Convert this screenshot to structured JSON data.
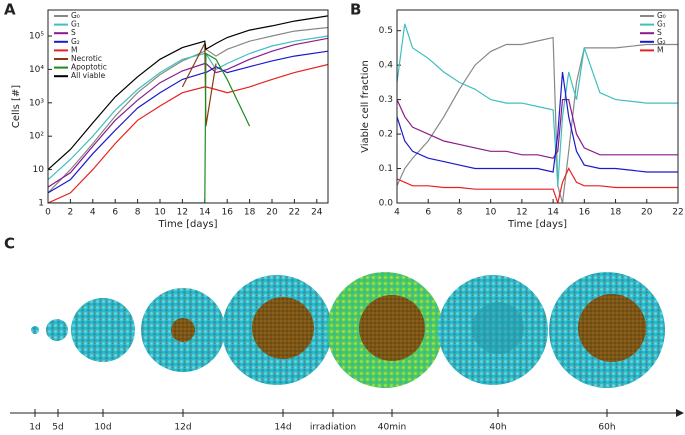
{
  "chart_data": [
    {
      "type": "line",
      "panel_label": "A",
      "xlabel": "Time [days]",
      "ylabel": "Cells [#]",
      "log_y": true,
      "legend": "upper left",
      "x": [
        0,
        2,
        4,
        6,
        8,
        10,
        12,
        14,
        14.1,
        15,
        16,
        18,
        20,
        22,
        25
      ],
      "xlim": [
        0,
        25
      ],
      "xticks": [
        0,
        2,
        4,
        6,
        8,
        10,
        12,
        14,
        16,
        18,
        20,
        22,
        24
      ],
      "ylim": [
        1,
        600000
      ],
      "yticks": [
        1,
        10,
        {
          "value": 100,
          "label": "10²"
        },
        {
          "value": 1000,
          "label": "10³"
        },
        {
          "value": 10000,
          "label": "10⁴"
        },
        {
          "value": 100000,
          "label": "10⁵"
        }
      ],
      "series": [
        {
          "name": "G₀",
          "color": "#888888",
          "values": [
            2,
            10,
            60,
            400,
            2000,
            7000,
            18000,
            35000,
            40000,
            25000,
            40000,
            70000,
            100000,
            140000,
            180000
          ]
        },
        {
          "name": "G₁",
          "color": "#3fbfbf",
          "values": [
            5,
            20,
            100,
            600,
            2500,
            8000,
            20000,
            30000,
            30000,
            10000,
            15000,
            30000,
            50000,
            70000,
            100000
          ]
        },
        {
          "name": "S",
          "color": "#8b1a8b",
          "values": [
            3,
            8,
            50,
            300,
            1200,
            4000,
            9000,
            15000,
            15000,
            8000,
            10000,
            20000,
            35000,
            55000,
            85000
          ]
        },
        {
          "name": "G₂",
          "color": "#1a1acc",
          "values": [
            2,
            5,
            30,
            150,
            700,
            2000,
            5000,
            8000,
            8000,
            12000,
            8000,
            12000,
            18000,
            25000,
            35000
          ]
        },
        {
          "name": "M",
          "color": "#e82020",
          "values": [
            1,
            2,
            10,
            60,
            300,
            800,
            2000,
            3000,
            3000,
            2500,
            2000,
            3000,
            5000,
            8000,
            14000
          ]
        },
        {
          "name": "Necrotic",
          "color": "#8b3a10",
          "values": [
            null,
            null,
            null,
            null,
            null,
            null,
            3000,
            60000,
            200,
            15000,
            null,
            null,
            null,
            null,
            null
          ]
        },
        {
          "name": "Apoptotic",
          "color": "#1a8c1a",
          "values": [
            1,
            1,
            1,
            1,
            1,
            1,
            1,
            1,
            30000,
            20000,
            5000,
            200,
            null,
            null,
            null
          ]
        },
        {
          "name": "All viable",
          "color": "#000000",
          "values": [
            10,
            40,
            250,
            1500,
            6000,
            20000,
            45000,
            70000,
            40000,
            60000,
            90000,
            150000,
            200000,
            280000,
            400000
          ]
        }
      ]
    },
    {
      "type": "line",
      "panel_label": "B",
      "xlabel": "Time [days]",
      "ylabel": "Viable cell fraction",
      "log_y": false,
      "legend": "upper right",
      "x": [
        4,
        4.5,
        5,
        6,
        7,
        8,
        9,
        10,
        11,
        12,
        13,
        14,
        14.3,
        14.6,
        15,
        15.5,
        16,
        17,
        18,
        20,
        22
      ],
      "xlim": [
        4,
        22
      ],
      "xticks": [
        4,
        6,
        8,
        10,
        12,
        14,
        16,
        18,
        20,
        22
      ],
      "ylim": [
        0,
        0.56
      ],
      "yticks": [
        {
          "value": 0,
          "label": "0.0"
        },
        0.1,
        0.2,
        0.3,
        0.4,
        0.5
      ],
      "series": [
        {
          "name": "G₀",
          "color": "#888888",
          "values": [
            0.05,
            0.1,
            0.13,
            0.18,
            0.25,
            0.33,
            0.4,
            0.44,
            0.46,
            0.46,
            0.47,
            0.48,
            0.05,
            0,
            0.15,
            0.35,
            0.45,
            0.45,
            0.45,
            0.46,
            0.46
          ]
        },
        {
          "name": "G₁",
          "color": "#3fbfbf",
          "values": [
            0.35,
            0.52,
            0.45,
            0.42,
            0.38,
            0.35,
            0.33,
            0.3,
            0.29,
            0.29,
            0.28,
            0.27,
            0.05,
            0.25,
            0.38,
            0.3,
            0.45,
            0.32,
            0.3,
            0.29,
            0.29
          ]
        },
        {
          "name": "S",
          "color": "#8b1a8b",
          "values": [
            0.3,
            0.25,
            0.22,
            0.2,
            0.18,
            0.17,
            0.16,
            0.15,
            0.15,
            0.14,
            0.14,
            0.13,
            0.15,
            0.3,
            0.3,
            0.2,
            0.16,
            0.14,
            0.14,
            0.14,
            0.14
          ]
        },
        {
          "name": "G₂",
          "color": "#1a1acc",
          "values": [
            0.25,
            0.18,
            0.15,
            0.13,
            0.12,
            0.11,
            0.1,
            0.1,
            0.1,
            0.1,
            0.1,
            0.09,
            0.2,
            0.38,
            0.25,
            0.15,
            0.11,
            0.1,
            0.1,
            0.09,
            0.09
          ]
        },
        {
          "name": "M",
          "color": "#e82020",
          "values": [
            0.07,
            0.06,
            0.05,
            0.05,
            0.045,
            0.045,
            0.04,
            0.04,
            0.04,
            0.04,
            0.04,
            0.04,
            0,
            0.06,
            0.1,
            0.06,
            0.05,
            0.05,
            0.045,
            0.045,
            0.045
          ]
        }
      ]
    }
  ],
  "panel_c": {
    "panel_label": "C",
    "timeline": [
      "1d",
      "5d",
      "10d",
      "12d",
      "14d",
      "irradiation",
      "40min",
      "40h",
      "60h"
    ]
  }
}
